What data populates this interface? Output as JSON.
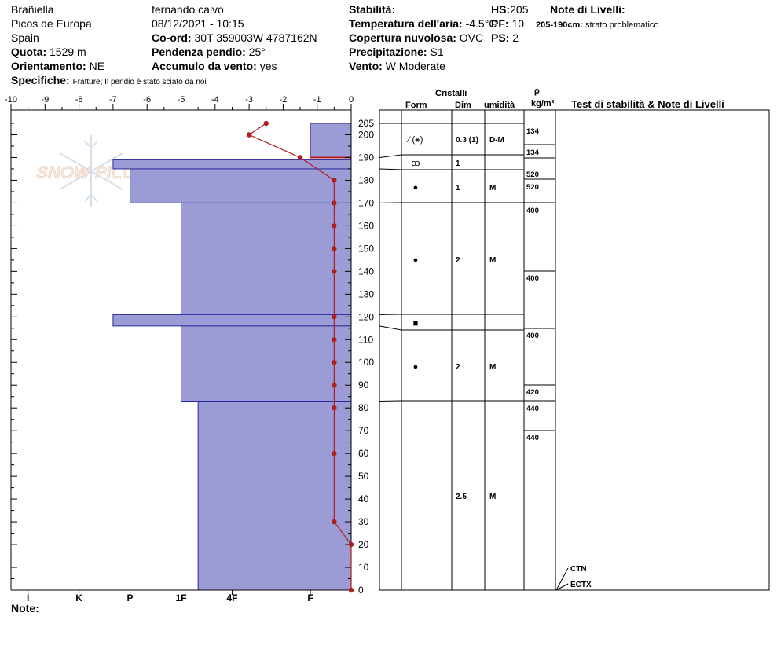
{
  "header": {
    "col1": [
      "Brañiella",
      "Picos de Europa",
      "Spain"
    ],
    "quota_label": "Quota:",
    "quota_value": "1529 m",
    "orient_label": "Orientamento:",
    "orient_value": "NE",
    "specifiche_label": "Specifiche:",
    "specifiche_value": "Fratture;  Il pendio è stato sciato da noi",
    "observer": "fernando calvo",
    "datetime": "08/12/2021 - 10:15",
    "coord_label": "Co-ord:",
    "coord_value": "30T 359003W 4787162N",
    "pendenza_label": "Pendenza pendio:",
    "pendenza_value": "25°",
    "accumulo_label": "Accumulo da vento:",
    "accumulo_value": "yes",
    "stabilita_label": "Stabilità:",
    "temp_label": "Temperatura dell'aria:",
    "temp_value": "-4.5°C",
    "copertura_label": "Copertura nuvolosa:",
    "copertura_value": "OVC",
    "precip_label": "Precipitazione:",
    "precip_value": "S1",
    "vento_label": "Vento:",
    "vento_value": "W Moderate",
    "hs_label": "HS:",
    "hs_value": "205",
    "pf_label": "PF:",
    "pf_value": "10",
    "ps_label": "PS:",
    "ps_value": "2",
    "note_livelli_title": "Note di Livelli:",
    "note_livelli_range": "205-190cm:",
    "note_livelli_text": "strato problematico"
  },
  "watermark": "SNOW PILOT",
  "footer": {
    "note_label": "Note:"
  },
  "columns": {
    "cristalli": "Cristalli",
    "form": "Form",
    "dim": "Dim",
    "umidita": "umidità",
    "rho": "ρ",
    "density_unit": "kg/m³",
    "tests": "Test di stabilità & Note di Livelli"
  },
  "chart_data": {
    "type": "snow-profile",
    "temp_axis": {
      "ticks": [
        -10,
        -9,
        -8,
        -7,
        -6,
        -5,
        -4,
        -3,
        -2,
        -1,
        0
      ]
    },
    "height_axis": {
      "range": [
        0,
        205
      ],
      "ticks": [
        0,
        10,
        20,
        30,
        40,
        50,
        60,
        70,
        80,
        90,
        100,
        110,
        120,
        130,
        140,
        150,
        160,
        170,
        180,
        190,
        200,
        205
      ]
    },
    "hardness_labels": [
      {
        "label": "I",
        "value": -9.5
      },
      {
        "label": "K",
        "value": -8
      },
      {
        "label": "P",
        "value": -6.5
      },
      {
        "label": "1F",
        "value": -5
      },
      {
        "label": "4F",
        "value": -3.5
      },
      {
        "label": "F",
        "value": -1.2
      }
    ],
    "hardness_layers": [
      {
        "top": 205,
        "bottom": 190,
        "hardness": -1.2
      },
      {
        "top": 190,
        "bottom": 189,
        "hardness": 0
      },
      {
        "top": 189,
        "bottom": 185,
        "hardness": -7.0
      },
      {
        "top": 185,
        "bottom": 170,
        "hardness": -6.5
      },
      {
        "top": 170,
        "bottom": 121,
        "hardness": -5.0
      },
      {
        "top": 121,
        "bottom": 116,
        "hardness": -7.0
      },
      {
        "top": 116,
        "bottom": 83,
        "hardness": -5.0
      },
      {
        "top": 83,
        "bottom": 0,
        "hardness": -4.5
      }
    ],
    "temperature_profile": [
      {
        "h": 205,
        "t": -2.5
      },
      {
        "h": 200,
        "t": -3.0
      },
      {
        "h": 190,
        "t": -1.5
      },
      {
        "h": 180,
        "t": -0.5
      },
      {
        "h": 170,
        "t": -0.5
      },
      {
        "h": 160,
        "t": -0.5
      },
      {
        "h": 150,
        "t": -0.5
      },
      {
        "h": 140,
        "t": -0.5
      },
      {
        "h": 120,
        "t": -0.5
      },
      {
        "h": 110,
        "t": -0.5
      },
      {
        "h": 100,
        "t": -0.5
      },
      {
        "h": 90,
        "t": -0.5
      },
      {
        "h": 80,
        "t": -0.5
      },
      {
        "h": 60,
        "t": -0.5
      },
      {
        "h": 30,
        "t": -0.5
      },
      {
        "h": 20,
        "t": 0
      },
      {
        "h": 0,
        "t": 0
      }
    ],
    "layer_boundaries": [
      205,
      190,
      185,
      170,
      121,
      116,
      83,
      0
    ],
    "crystal_rows": [
      {
        "h": 195,
        "form": "⁄ (⚹)",
        "dim": "0.3 (1)",
        "wet": "D-M"
      },
      {
        "h": 187,
        "form": "ꝏ",
        "dim": "1",
        "wet": ""
      },
      {
        "h": 177,
        "form": "●",
        "dim": "1",
        "wet": "M"
      },
      {
        "h": 145,
        "form": "●",
        "dim": "2",
        "wet": "M"
      },
      {
        "h": 118,
        "form": "■",
        "dim": "",
        "wet": ""
      },
      {
        "h": 99,
        "form": "●",
        "dim": "2",
        "wet": "M"
      },
      {
        "h": 41,
        "form": "",
        "dim": "2.5",
        "wet": "M"
      }
    ],
    "density": [
      {
        "h": 205,
        "v": "134"
      },
      {
        "h": 192,
        "v": "134"
      },
      {
        "h": 184,
        "v": "520"
      },
      {
        "h": 179,
        "v": "520"
      },
      {
        "h": 169,
        "v": "400"
      },
      {
        "h": 139,
        "v": "400"
      },
      {
        "h": 114,
        "v": "400"
      },
      {
        "h": 90,
        "v": "420"
      },
      {
        "h": 81,
        "v": "440"
      },
      {
        "h": 68,
        "v": "440"
      }
    ],
    "density_boundaries": [
      190,
      185,
      180,
      140,
      115,
      85,
      70
    ],
    "stability_tests": [
      {
        "h": 7,
        "label": "CTN"
      },
      {
        "h": 2,
        "label": "ECTX"
      }
    ]
  }
}
